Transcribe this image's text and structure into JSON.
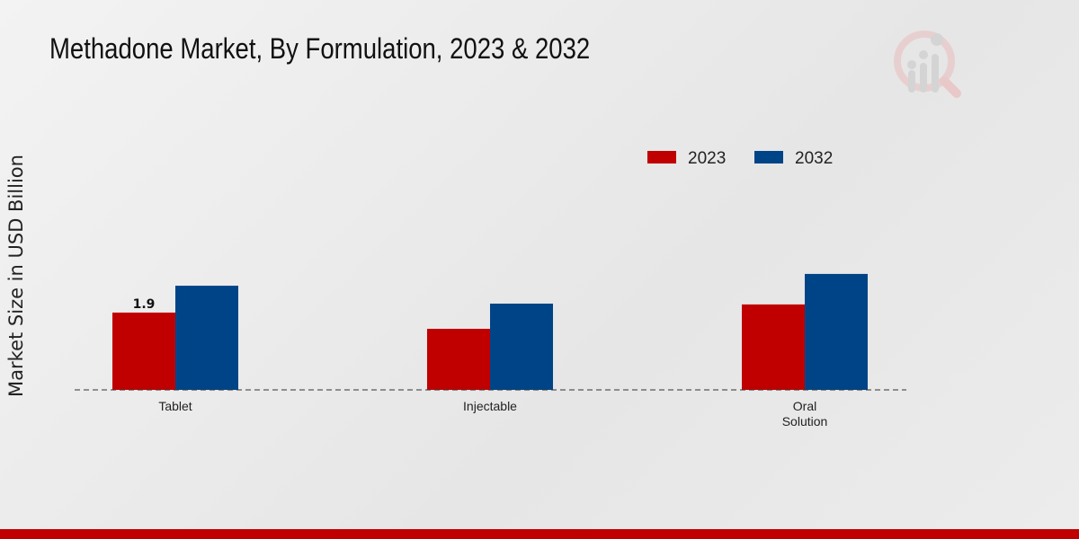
{
  "chart_data": {
    "type": "bar",
    "title": "Methadone Market, By Formulation, 2023 & 2032",
    "xlabel": "",
    "ylabel": "Market Size in USD Billion",
    "categories": [
      "Tablet",
      "Injectable",
      "Oral\nSolution"
    ],
    "series": [
      {
        "name": "2023",
        "color": "#c00000",
        "values": [
          1.9,
          1.5,
          2.1
        ]
      },
      {
        "name": "2032",
        "color": "#004488",
        "values": [
          2.56,
          2.12,
          2.85
        ]
      }
    ],
    "data_labels": [
      {
        "series": 0,
        "index": 0,
        "text": "1.9"
      }
    ],
    "ylim": [
      0,
      6.05
    ],
    "grid": false,
    "legend": "top-right"
  }
}
